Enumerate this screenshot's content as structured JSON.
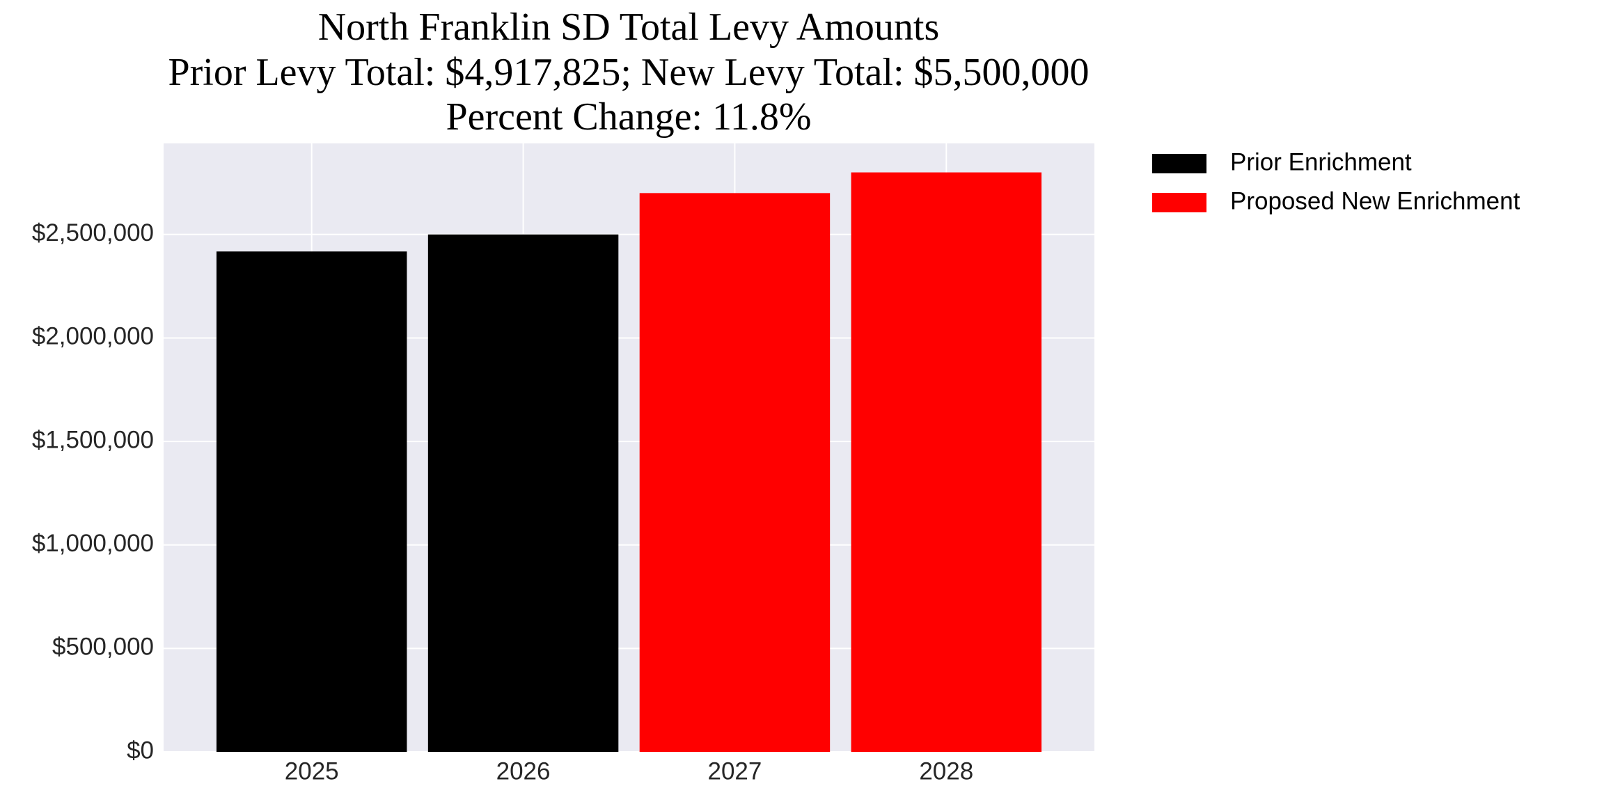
{
  "chart_data": {
    "type": "bar",
    "title": "North Franklin SD Total Levy Amounts",
    "subtitle": "Prior Levy Total:  $4,917,825; New Levy Total: $5,500,000",
    "annotation": "Percent Change: 11.8%",
    "categories": [
      "2025",
      "2026",
      "2027",
      "2028"
    ],
    "series": [
      {
        "name": "Prior Enrichment",
        "color": "#000000",
        "values": [
          2417825,
          2500000,
          null,
          null
        ]
      },
      {
        "name": "Proposed New Enrichment",
        "color": "#ff0000",
        "values": [
          null,
          null,
          2700000,
          2800000
        ]
      }
    ],
    "ylim": [
      0,
      2940000
    ],
    "yticks": [
      {
        "value": 0,
        "label": "$0"
      },
      {
        "value": 500000,
        "label": "$500,000"
      },
      {
        "value": 1000000,
        "label": "$1,000,000"
      },
      {
        "value": 1500000,
        "label": "$1,500,000"
      },
      {
        "value": 2000000,
        "label": "$2,000,000"
      },
      {
        "value": 2500000,
        "label": "$2,500,000"
      }
    ],
    "grid": true,
    "legend": "outside-right"
  }
}
